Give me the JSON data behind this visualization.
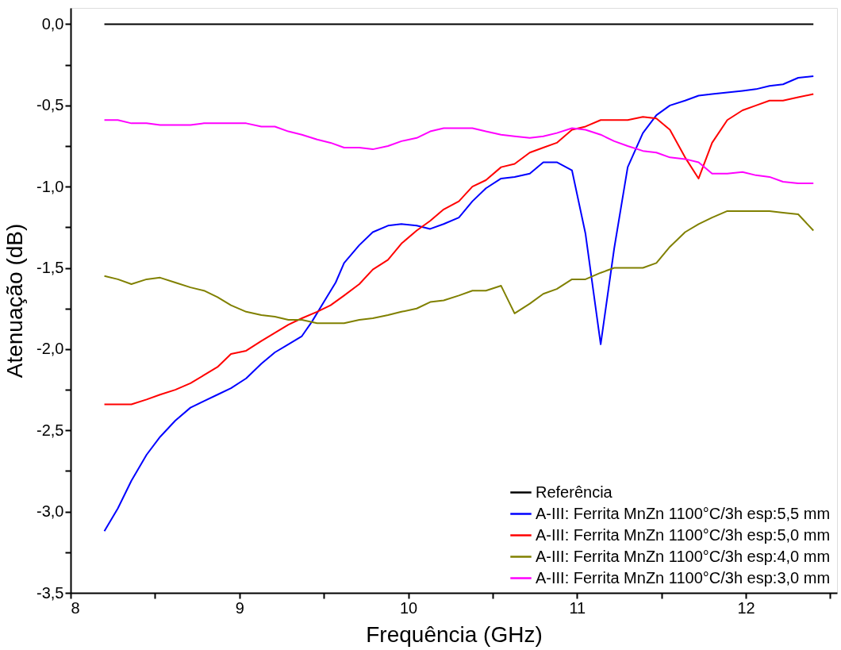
{
  "chart_data": {
    "type": "line",
    "xlabel": "Frequência (GHz)",
    "ylabel": "Atenuação (dB)",
    "xlim": [
      8,
      12.54
    ],
    "xticks": [
      8,
      {
        "value": 8.5,
        "label": null
      },
      9,
      {
        "value": 9.5,
        "label": null
      },
      10,
      {
        "value": 10.5,
        "label": null
      },
      11,
      {
        "value": 11.5,
        "label": null
      },
      12,
      {
        "value": 12.5,
        "label": null
      }
    ],
    "ylim": [
      -3.5,
      0.1
    ],
    "yticks": [
      {
        "value": -3.5,
        "label": "-3,5"
      },
      {
        "value": -3.25,
        "label": null
      },
      {
        "value": -3,
        "label": "-3,0"
      },
      {
        "value": -2.75,
        "label": null
      },
      {
        "value": -2.5,
        "label": "-2,5"
      },
      {
        "value": -2.25,
        "label": null
      },
      {
        "value": -2,
        "label": "-2,0"
      },
      {
        "value": -1.75,
        "label": null
      },
      {
        "value": -1.5,
        "label": "-1,5"
      },
      {
        "value": -1.25,
        "label": null
      },
      {
        "value": -1,
        "label": "-1,0"
      },
      {
        "value": -0.75,
        "label": null
      },
      {
        "value": -0.5,
        "label": "-0,5"
      },
      {
        "value": -0.25,
        "label": null
      },
      {
        "value": 0,
        "label": "0,0"
      }
    ],
    "grid": false,
    "legend": "bottom right",
    "marker": "none",
    "line_style": "solid",
    "series": [
      {
        "name": "Referência",
        "color": "#000000",
        "x": [
          8.2,
          12.4
        ],
        "values": [
          0,
          0
        ]
      },
      {
        "name": "A-III: Ferrita MnZn 1100°C/3h esp:5,5 mm",
        "color": "#0000ff",
        "x": [
          8.2,
          8.28,
          8.36,
          8.45,
          8.53,
          8.62,
          8.71,
          8.79,
          8.87,
          8.95,
          9.04,
          9.13,
          9.21,
          9.29,
          9.37,
          9.43,
          9.5,
          9.57,
          9.62,
          9.71,
          9.79,
          9.88,
          9.96,
          10.05,
          10.13,
          10.21,
          10.3,
          10.38,
          10.46,
          10.55,
          10.63,
          10.72,
          10.8,
          10.88,
          10.97,
          11.05,
          11.14,
          11.22,
          11.3,
          11.39,
          11.47,
          11.55,
          11.64,
          11.72,
          11.8,
          11.98,
          12.06,
          12.14,
          12.22,
          12.31,
          12.4
        ],
        "values": [
          -3.12,
          -2.98,
          -2.81,
          -2.65,
          -2.54,
          -2.44,
          -2.36,
          -2.32,
          -2.28,
          -2.24,
          -2.18,
          -2.09,
          -2.02,
          -1.97,
          -1.92,
          -1.83,
          -1.71,
          -1.59,
          -1.47,
          -1.36,
          -1.28,
          -1.24,
          -1.23,
          -1.24,
          -1.26,
          -1.23,
          -1.19,
          -1.09,
          -1.01,
          -0.95,
          -0.94,
          -0.92,
          -0.85,
          -0.85,
          -0.9,
          -1.29,
          -1.97,
          -1.38,
          -0.88,
          -0.67,
          -0.56,
          -0.5,
          -0.47,
          -0.44,
          -0.43,
          -0.41,
          -0.4,
          -0.38,
          -0.37,
          -0.33,
          -0.32
        ]
      },
      {
        "name": "A-III: Ferrita MnZn 1100°C/3h esp:5,0 mm",
        "color": "#ff0000",
        "x": [
          8.2,
          8.28,
          8.36,
          8.45,
          8.53,
          8.62,
          8.71,
          8.79,
          8.87,
          8.95,
          9.04,
          9.13,
          9.21,
          9.29,
          9.37,
          9.46,
          9.54,
          9.62,
          9.71,
          9.79,
          9.88,
          9.96,
          10.05,
          10.13,
          10.21,
          10.3,
          10.38,
          10.46,
          10.55,
          10.63,
          10.72,
          10.8,
          10.88,
          10.97,
          11.05,
          11.14,
          11.3,
          11.39,
          11.47,
          11.55,
          11.64,
          11.72,
          11.8,
          11.89,
          11.98,
          12.06,
          12.14,
          12.22,
          12.31,
          12.4
        ],
        "values": [
          -2.34,
          -2.34,
          -2.34,
          -2.31,
          -2.28,
          -2.25,
          -2.21,
          -2.16,
          -2.11,
          -2.03,
          -2.01,
          -1.95,
          -1.9,
          -1.85,
          -1.81,
          -1.77,
          -1.73,
          -1.67,
          -1.6,
          -1.51,
          -1.45,
          -1.35,
          -1.27,
          -1.21,
          -1.14,
          -1.09,
          -1.0,
          -0.96,
          -0.88,
          -0.86,
          -0.79,
          -0.76,
          -0.73,
          -0.65,
          -0.63,
          -0.59,
          -0.59,
          -0.57,
          -0.58,
          -0.65,
          -0.82,
          -0.95,
          -0.73,
          -0.59,
          -0.53,
          -0.5,
          -0.47,
          -0.47,
          -0.45,
          -0.43
        ]
      },
      {
        "name": "A-III: Ferrita MnZn 1100°C/3h esp:4,0 mm",
        "color": "#808000",
        "x": [
          8.2,
          8.28,
          8.36,
          8.45,
          8.53,
          8.62,
          8.71,
          8.79,
          8.87,
          8.95,
          9.04,
          9.13,
          9.21,
          9.29,
          9.37,
          9.46,
          9.62,
          9.71,
          9.79,
          9.88,
          9.96,
          10.05,
          10.13,
          10.21,
          10.3,
          10.38,
          10.46,
          10.55,
          10.63,
          10.72,
          10.8,
          10.88,
          10.97,
          11.05,
          11.14,
          11.22,
          11.39,
          11.47,
          11.55,
          11.64,
          11.72,
          11.8,
          11.89,
          11.98,
          12.06,
          12.14,
          12.22,
          12.31,
          12.4
        ],
        "values": [
          -1.55,
          -1.57,
          -1.6,
          -1.57,
          -1.56,
          -1.59,
          -1.62,
          -1.64,
          -1.68,
          -1.73,
          -1.77,
          -1.79,
          -1.8,
          -1.82,
          -1.82,
          -1.84,
          -1.84,
          -1.82,
          -1.81,
          -1.79,
          -1.77,
          -1.75,
          -1.71,
          -1.7,
          -1.67,
          -1.64,
          -1.64,
          -1.61,
          -1.78,
          -1.72,
          -1.66,
          -1.63,
          -1.57,
          -1.57,
          -1.53,
          -1.5,
          -1.5,
          -1.47,
          -1.37,
          -1.28,
          -1.23,
          -1.19,
          -1.15,
          -1.15,
          -1.15,
          -1.15,
          -1.16,
          -1.17,
          -1.27
        ]
      },
      {
        "name": "A-III: Ferrita MnZn 1100°C/3h esp:3,0 mm",
        "color": "#ff00ff",
        "x": [
          8.2,
          8.28,
          8.36,
          8.45,
          8.53,
          8.62,
          8.71,
          8.79,
          8.87,
          8.95,
          9.04,
          9.13,
          9.21,
          9.29,
          9.37,
          9.46,
          9.54,
          9.62,
          9.71,
          9.79,
          9.88,
          9.96,
          10.05,
          10.13,
          10.21,
          10.3,
          10.38,
          10.46,
          10.55,
          10.63,
          10.72,
          10.8,
          10.88,
          10.97,
          11.05,
          11.14,
          11.22,
          11.3,
          11.39,
          11.47,
          11.55,
          11.64,
          11.72,
          11.8,
          11.89,
          11.98,
          12.06,
          12.14,
          12.22,
          12.31,
          12.4
        ],
        "values": [
          -0.59,
          -0.59,
          -0.61,
          -0.61,
          -0.62,
          -0.62,
          -0.62,
          -0.61,
          -0.61,
          -0.61,
          -0.61,
          -0.63,
          -0.63,
          -0.66,
          -0.68,
          -0.71,
          -0.73,
          -0.76,
          -0.76,
          -0.77,
          -0.75,
          -0.72,
          -0.7,
          -0.66,
          -0.64,
          -0.64,
          -0.64,
          -0.66,
          -0.68,
          -0.69,
          -0.7,
          -0.69,
          -0.67,
          -0.64,
          -0.65,
          -0.68,
          -0.72,
          -0.75,
          -0.78,
          -0.79,
          -0.82,
          -0.83,
          -0.85,
          -0.92,
          -0.92,
          -0.91,
          -0.93,
          -0.94,
          -0.97,
          -0.98,
          -0.98
        ]
      }
    ]
  }
}
